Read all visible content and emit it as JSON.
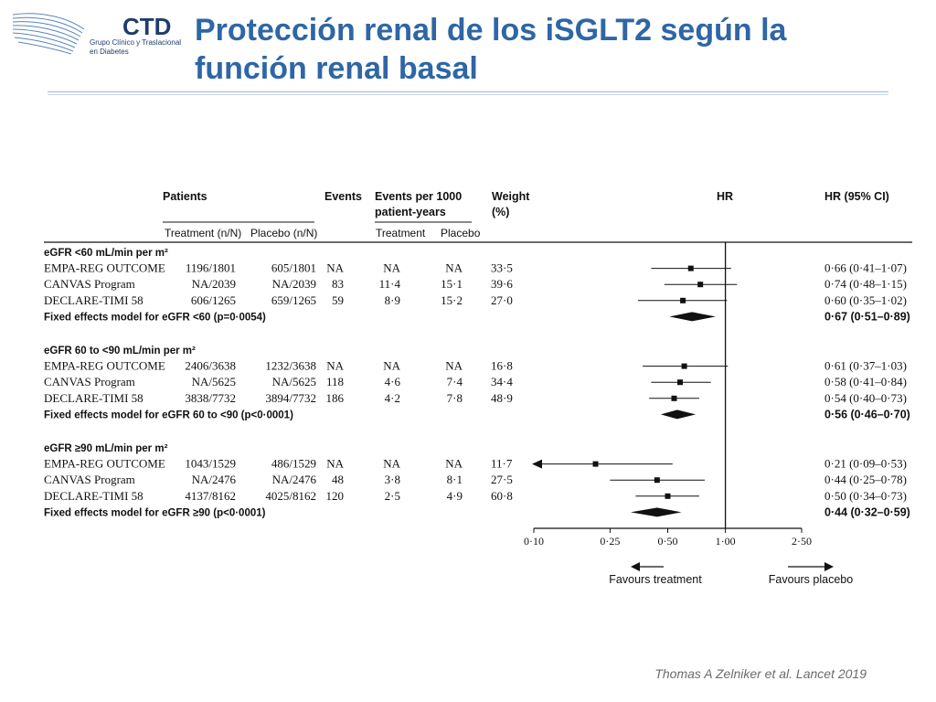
{
  "title": "Protección renal de los iSGLT2 según la función renal basal",
  "logo": {
    "text": "CTD",
    "sub1": "Grupo Clínico y Traslacional",
    "sub2": "en Diabetes"
  },
  "citation": "Thomas A Zelniker et al. Lancet 2019",
  "colors": {
    "title": "#2e66a6",
    "text": "#1a1a1a",
    "rule": "#9fb7d3",
    "plot": "#111111"
  },
  "table": {
    "headers": {
      "patients": "Patients",
      "treatment": "Treatment (n/N)",
      "placebo": "Placebo (n/N)",
      "events": "Events",
      "events_per_1000_l1": "Events per 1000",
      "events_per_1000_l2": "patient-years",
      "ep_treatment": "Treatment",
      "ep_placebo": "Placebo",
      "weight_l1": "Weight",
      "weight_l2": "(%)",
      "hr": "HR",
      "hr_ci": "HR (95% CI)"
    },
    "subgroups": [
      {
        "label": "eGFR <60 mL/min per m²",
        "rows": [
          {
            "study": "EMPA-REG OUTCOME",
            "treatment": "1196/1801",
            "placebo": "605/1801",
            "events": "NA",
            "ep_treatment": "NA",
            "ep_placebo": "NA",
            "weight": "33·5",
            "hr_ci": "0·66 (0·41–1·07)"
          },
          {
            "study": "CANVAS Program",
            "treatment": "NA/2039",
            "placebo": "NA/2039",
            "events": "83",
            "ep_treatment": "11·4",
            "ep_placebo": "15·1",
            "weight": "39·6",
            "hr_ci": "0·74 (0·48–1·15)"
          },
          {
            "study": "DECLARE-TIMI 58",
            "treatment": "606/1265",
            "placebo": "659/1265",
            "events": "59",
            "ep_treatment": "8·9",
            "ep_placebo": "15·2",
            "weight": "27·0",
            "hr_ci": "0·60 (0·35–1·02)"
          }
        ],
        "pooled": {
          "label": "Fixed effects model for eGFR <60 (p=0·0054)",
          "hr_ci": "0·67 (0·51–0·89)"
        }
      },
      {
        "label": "eGFR 60 to <90 mL/min per m²",
        "rows": [
          {
            "study": "EMPA-REG OUTCOME",
            "treatment": "2406/3638",
            "placebo": "1232/3638",
            "events": "NA",
            "ep_treatment": "NA",
            "ep_placebo": "NA",
            "weight": "16·8",
            "hr_ci": "0·61 (0·37–1·03)"
          },
          {
            "study": "CANVAS Program",
            "treatment": "NA/5625",
            "placebo": "NA/5625",
            "events": "118",
            "ep_treatment": "4·6",
            "ep_placebo": "7·4",
            "weight": "34·4",
            "hr_ci": "0·58 (0·41–0·84)"
          },
          {
            "study": "DECLARE-TIMI 58",
            "treatment": "3838/7732",
            "placebo": "3894/7732",
            "events": "186",
            "ep_treatment": "4·2",
            "ep_placebo": "7·8",
            "weight": "48·9",
            "hr_ci": "0·54 (0·40–0·73)"
          }
        ],
        "pooled": {
          "label": "Fixed effects model for eGFR 60 to <90 (p<0·0001)",
          "hr_ci": "0·56 (0·46–0·70)"
        }
      },
      {
        "label": "eGFR ≥90 mL/min per m²",
        "rows": [
          {
            "study": "EMPA-REG OUTCOME",
            "treatment": "1043/1529",
            "placebo": "486/1529",
            "events": "NA",
            "ep_treatment": "NA",
            "ep_placebo": "NA",
            "weight": "11·7",
            "hr_ci": "0·21 (0·09–0·53)"
          },
          {
            "study": "CANVAS Program",
            "treatment": "NA/2476",
            "placebo": "NA/2476",
            "events": "48",
            "ep_treatment": "3·8",
            "ep_placebo": "8·1",
            "weight": "27·5",
            "hr_ci": "0·44 (0·25–0·78)"
          },
          {
            "study": "DECLARE-TIMI 58",
            "treatment": "4137/8162",
            "placebo": "4025/8162",
            "events": "120",
            "ep_treatment": "2·5",
            "ep_placebo": "4·9",
            "weight": "60·8",
            "hr_ci": "0·50 (0·34–0·73)"
          }
        ],
        "pooled": {
          "label": "Fixed effects model for eGFR ≥90 (p<0·0001)",
          "hr_ci": "0·44 (0·32–0·59)"
        }
      }
    ]
  },
  "chart_data": {
    "type": "forest",
    "scale": "log",
    "xlim": [
      0.1,
      2.5
    ],
    "reference": 1.0,
    "ticks": [
      0.1,
      0.25,
      0.5,
      1.0,
      2.5
    ],
    "tick_labels": [
      "0·10",
      "0·25",
      "0·50",
      "1·00",
      "2·50"
    ],
    "direction_left": "Favours treatment",
    "direction_right": "Favours placebo",
    "subgroups": [
      {
        "studies": [
          {
            "hr": 0.66,
            "lo": 0.41,
            "hi": 1.07
          },
          {
            "hr": 0.74,
            "lo": 0.48,
            "hi": 1.15
          },
          {
            "hr": 0.6,
            "lo": 0.35,
            "hi": 1.02
          }
        ],
        "pooled": {
          "hr": 0.67,
          "lo": 0.51,
          "hi": 0.89
        }
      },
      {
        "studies": [
          {
            "hr": 0.61,
            "lo": 0.37,
            "hi": 1.03
          },
          {
            "hr": 0.58,
            "lo": 0.41,
            "hi": 0.84
          },
          {
            "hr": 0.54,
            "lo": 0.4,
            "hi": 0.73
          }
        ],
        "pooled": {
          "hr": 0.56,
          "lo": 0.46,
          "hi": 0.7
        }
      },
      {
        "studies": [
          {
            "hr": 0.21,
            "lo": 0.09,
            "hi": 0.53,
            "arrow_left": true
          },
          {
            "hr": 0.44,
            "lo": 0.25,
            "hi": 0.78
          },
          {
            "hr": 0.5,
            "lo": 0.34,
            "hi": 0.73
          }
        ],
        "pooled": {
          "hr": 0.44,
          "lo": 0.32,
          "hi": 0.59
        }
      }
    ]
  }
}
